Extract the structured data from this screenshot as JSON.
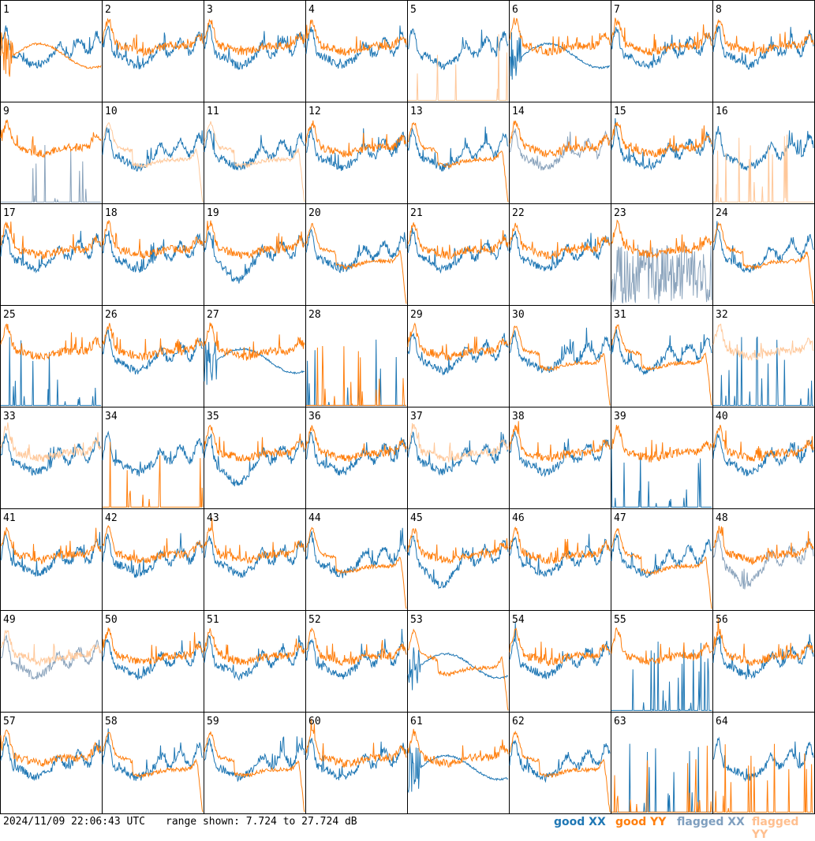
{
  "timestamp": "2024/11/09 22:06:43 UTC",
  "range_text": "range shown: 7.724 to 27.724 dB",
  "legend": [
    {
      "label": "good XX",
      "color": "#1f77b4"
    },
    {
      "label": "good YY",
      "color": "#ff7f0e"
    },
    {
      "label": "flagged XX",
      "color": "#7f9fbf"
    },
    {
      "label": "flagged YY",
      "color": "#ffbf8f"
    }
  ],
  "colors": {
    "good_xx": "#1f77b4",
    "good_yy": "#ff7f0e",
    "flagged_xx": "#8aa3bc",
    "flagged_yy": "#ffc89a"
  },
  "chart_data": {
    "type": "line",
    "title": "",
    "xlabel": "",
    "ylabel": "",
    "ylim": [
      7.724,
      27.724
    ],
    "grid": {
      "rows": 8,
      "cols": 8
    },
    "panels": [
      {
        "id": "1",
        "xx": "good",
        "yy": "good",
        "xx_shape": "normal",
        "yy_shape": "bump"
      },
      {
        "id": "2",
        "xx": "good",
        "yy": "good",
        "xx_shape": "normal",
        "yy_shape": "normal"
      },
      {
        "id": "3",
        "xx": "good",
        "yy": "good",
        "xx_shape": "normal",
        "yy_shape": "normal"
      },
      {
        "id": "4",
        "xx": "good",
        "yy": "good",
        "xx_shape": "normal",
        "yy_shape": "normal"
      },
      {
        "id": "5",
        "xx": "good",
        "yy": "flagged",
        "xx_shape": "normal",
        "yy_shape": "spikes"
      },
      {
        "id": "6",
        "xx": "good",
        "yy": "good",
        "xx_shape": "bump",
        "yy_shape": "normal"
      },
      {
        "id": "7",
        "xx": "good",
        "yy": "good",
        "xx_shape": "normal",
        "yy_shape": "normal"
      },
      {
        "id": "8",
        "xx": "good",
        "yy": "good",
        "xx_shape": "normal",
        "yy_shape": "normal"
      },
      {
        "id": "9",
        "xx": "flagged",
        "yy": "good",
        "xx_shape": "spikes",
        "yy_shape": "normal"
      },
      {
        "id": "10",
        "xx": "good",
        "yy": "flagged",
        "xx_shape": "normal",
        "yy_shape": "droop"
      },
      {
        "id": "11",
        "xx": "good",
        "yy": "flagged",
        "xx_shape": "normal",
        "yy_shape": "droop"
      },
      {
        "id": "12",
        "xx": "good",
        "yy": "good",
        "xx_shape": "normal",
        "yy_shape": "normal"
      },
      {
        "id": "13",
        "xx": "good",
        "yy": "good",
        "xx_shape": "normal",
        "yy_shape": "droop"
      },
      {
        "id": "14",
        "xx": "flagged",
        "yy": "good",
        "xx_shape": "normal",
        "yy_shape": "normal"
      },
      {
        "id": "15",
        "xx": "good",
        "yy": "good",
        "xx_shape": "normal",
        "yy_shape": "normal"
      },
      {
        "id": "16",
        "xx": "good",
        "yy": "flagged",
        "xx_shape": "normal",
        "yy_shape": "spikes"
      },
      {
        "id": "17",
        "xx": "good",
        "yy": "good",
        "xx_shape": "normal",
        "yy_shape": "normal"
      },
      {
        "id": "18",
        "xx": "good",
        "yy": "good",
        "xx_shape": "normal",
        "yy_shape": "normal"
      },
      {
        "id": "19",
        "xx": "good",
        "yy": "good",
        "xx_shape": "deep",
        "yy_shape": "normal"
      },
      {
        "id": "20",
        "xx": "good",
        "yy": "good",
        "xx_shape": "normal",
        "yy_shape": "droop"
      },
      {
        "id": "21",
        "xx": "good",
        "yy": "good",
        "xx_shape": "normal",
        "yy_shape": "normal"
      },
      {
        "id": "22",
        "xx": "good",
        "yy": "good",
        "xx_shape": "normal",
        "yy_shape": "normal"
      },
      {
        "id": "23",
        "xx": "flagged",
        "yy": "good",
        "xx_shape": "noise",
        "yy_shape": "normal"
      },
      {
        "id": "24",
        "xx": "good",
        "yy": "good",
        "xx_shape": "normal",
        "yy_shape": "droop"
      },
      {
        "id": "25",
        "xx": "good",
        "yy": "good",
        "xx_shape": "spikes",
        "yy_shape": "normal"
      },
      {
        "id": "26",
        "xx": "good",
        "yy": "good",
        "xx_shape": "normal",
        "yy_shape": "normal"
      },
      {
        "id": "27",
        "xx": "good",
        "yy": "good",
        "xx_shape": "bump",
        "yy_shape": "normal"
      },
      {
        "id": "28",
        "xx": "good",
        "yy": "good",
        "xx_shape": "spikes",
        "yy_shape": "spikes"
      },
      {
        "id": "29",
        "xx": "good",
        "yy": "good",
        "xx_shape": "normal",
        "yy_shape": "normal"
      },
      {
        "id": "30",
        "xx": "good",
        "yy": "good",
        "xx_shape": "normal",
        "yy_shape": "droop"
      },
      {
        "id": "31",
        "xx": "good",
        "yy": "good",
        "xx_shape": "normal",
        "yy_shape": "droop"
      },
      {
        "id": "32",
        "xx": "good",
        "yy": "flagged",
        "xx_shape": "spikes",
        "yy_shape": "normal"
      },
      {
        "id": "33",
        "xx": "good",
        "yy": "flagged",
        "xx_shape": "normal",
        "yy_shape": "normal"
      },
      {
        "id": "34",
        "xx": "good",
        "yy": "good",
        "xx_shape": "normal",
        "yy_shape": "spikes"
      },
      {
        "id": "35",
        "xx": "good",
        "yy": "good",
        "xx_shape": "deep",
        "yy_shape": "normal"
      },
      {
        "id": "36",
        "xx": "good",
        "yy": "good",
        "xx_shape": "normal",
        "yy_shape": "normal"
      },
      {
        "id": "37",
        "xx": "good",
        "yy": "flagged",
        "xx_shape": "normal",
        "yy_shape": "normal"
      },
      {
        "id": "38",
        "xx": "good",
        "yy": "good",
        "xx_shape": "normal",
        "yy_shape": "normal"
      },
      {
        "id": "39",
        "xx": "good",
        "yy": "good",
        "xx_shape": "spikes",
        "yy_shape": "normal"
      },
      {
        "id": "40",
        "xx": "good",
        "yy": "good",
        "xx_shape": "normal",
        "yy_shape": "normal"
      },
      {
        "id": "41",
        "xx": "good",
        "yy": "good",
        "xx_shape": "normal",
        "yy_shape": "normal"
      },
      {
        "id": "42",
        "xx": "good",
        "yy": "good",
        "xx_shape": "normal",
        "yy_shape": "normal"
      },
      {
        "id": "43",
        "xx": "good",
        "yy": "good",
        "xx_shape": "normal",
        "yy_shape": "normal"
      },
      {
        "id": "44",
        "xx": "good",
        "yy": "good",
        "xx_shape": "normal",
        "yy_shape": "droop"
      },
      {
        "id": "45",
        "xx": "good",
        "yy": "good",
        "xx_shape": "deep",
        "yy_shape": "normal"
      },
      {
        "id": "46",
        "xx": "good",
        "yy": "good",
        "xx_shape": "normal",
        "yy_shape": "normal"
      },
      {
        "id": "47",
        "xx": "good",
        "yy": "good",
        "xx_shape": "normal",
        "yy_shape": "droop"
      },
      {
        "id": "48",
        "xx": "flagged",
        "yy": "good",
        "xx_shape": "deep",
        "yy_shape": "normal"
      },
      {
        "id": "49",
        "xx": "flagged",
        "yy": "flagged",
        "xx_shape": "normal",
        "yy_shape": "normal"
      },
      {
        "id": "50",
        "xx": "good",
        "yy": "good",
        "xx_shape": "normal",
        "yy_shape": "normal"
      },
      {
        "id": "51",
        "xx": "good",
        "yy": "good",
        "xx_shape": "normal",
        "yy_shape": "normal"
      },
      {
        "id": "52",
        "xx": "good",
        "yy": "good",
        "xx_shape": "normal",
        "yy_shape": "normal"
      },
      {
        "id": "53",
        "xx": "good",
        "yy": "good",
        "xx_shape": "bump",
        "yy_shape": "droop"
      },
      {
        "id": "54",
        "xx": "good",
        "yy": "good",
        "xx_shape": "normal",
        "yy_shape": "normal"
      },
      {
        "id": "55",
        "xx": "good",
        "yy": "good",
        "xx_shape": "spikes",
        "yy_shape": "normal"
      },
      {
        "id": "56",
        "xx": "good",
        "yy": "good",
        "xx_shape": "normal",
        "yy_shape": "normal"
      },
      {
        "id": "57",
        "xx": "good",
        "yy": "good",
        "xx_shape": "normal",
        "yy_shape": "normal"
      },
      {
        "id": "58",
        "xx": "good",
        "yy": "good",
        "xx_shape": "normal",
        "yy_shape": "droop"
      },
      {
        "id": "59",
        "xx": "good",
        "yy": "good",
        "xx_shape": "normal",
        "yy_shape": "droop"
      },
      {
        "id": "60",
        "xx": "good",
        "yy": "good",
        "xx_shape": "normal",
        "yy_shape": "normal"
      },
      {
        "id": "61",
        "xx": "good",
        "yy": "good",
        "xx_shape": "bump",
        "yy_shape": "normal"
      },
      {
        "id": "62",
        "xx": "good",
        "yy": "good",
        "xx_shape": "normal",
        "yy_shape": "droop"
      },
      {
        "id": "63",
        "xx": "good",
        "yy": "good",
        "xx_shape": "spikes",
        "yy_shape": "spikes"
      },
      {
        "id": "64",
        "xx": "good",
        "yy": "good",
        "xx_shape": "normal",
        "yy_shape": "spikes"
      }
    ]
  }
}
